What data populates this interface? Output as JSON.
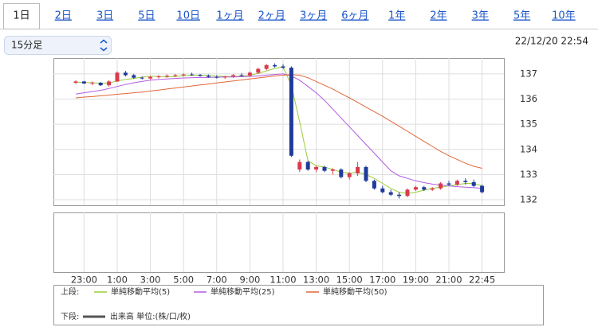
{
  "tabs": [
    "1日",
    "2日",
    "3日",
    "5日",
    "10日",
    "1ヶ月",
    "2ヶ月",
    "3ヶ月",
    "6ヶ月",
    "1年",
    "2年",
    "3年",
    "5年",
    "10年"
  ],
  "active_tab": 0,
  "interval_select": "15分足",
  "timestamp": "22/12/20 22:54",
  "chart_data": {
    "type": "candlestick",
    "categories": [
      null,
      "23:00",
      null,
      null,
      null,
      "1:00",
      null,
      null,
      null,
      "3:00",
      null,
      null,
      null,
      "5:00",
      null,
      null,
      null,
      "7:00",
      null,
      null,
      null,
      "9:00",
      null,
      null,
      null,
      "11:00",
      null,
      null,
      null,
      "13:00",
      null,
      null,
      null,
      "15:00",
      null,
      null,
      null,
      "17:00",
      null,
      null,
      null,
      "19:00",
      null,
      null,
      null,
      "21:00",
      null,
      null,
      null,
      "22:45"
    ],
    "open": [
      136.65,
      136.7,
      136.62,
      136.65,
      136.55,
      136.7,
      137.05,
      136.95,
      136.85,
      136.82,
      136.88,
      136.9,
      136.93,
      136.95,
      136.98,
      136.96,
      136.92,
      136.88,
      136.86,
      136.9,
      136.95,
      136.93,
      137.05,
      137.2,
      137.35,
      137.3,
      137.25,
      133.2,
      133.5,
      133.2,
      133.3,
      133.15,
      133.2,
      132.9,
      133.05,
      133.3,
      132.75,
      132.45,
      132.3,
      132.2,
      132.15,
      132.4,
      132.5,
      132.4,
      132.45,
      132.65,
      132.6,
      132.75,
      132.7,
      132.55
    ],
    "high": [
      136.75,
      136.72,
      136.7,
      136.68,
      136.75,
      137.1,
      137.12,
      137.0,
      136.9,
      136.92,
      136.95,
      136.98,
      137.0,
      137.02,
      137.05,
      137.0,
      136.98,
      136.95,
      136.92,
      137.0,
      137.02,
      137.1,
      137.25,
      137.4,
      137.42,
      137.38,
      137.3,
      133.6,
      133.55,
      133.35,
      133.35,
      133.25,
      133.25,
      133.1,
      133.5,
      133.35,
      132.8,
      132.55,
      132.4,
      132.3,
      132.45,
      132.55,
      132.55,
      132.5,
      132.7,
      132.75,
      132.8,
      132.85,
      132.8,
      132.6
    ],
    "low": [
      136.6,
      136.6,
      136.55,
      136.52,
      136.5,
      136.68,
      136.9,
      136.8,
      136.78,
      136.78,
      136.82,
      136.85,
      136.88,
      136.9,
      136.92,
      136.9,
      136.85,
      136.82,
      136.8,
      136.85,
      136.9,
      136.9,
      137.0,
      137.15,
      137.25,
      137.2,
      133.7,
      133.1,
      133.15,
      133.1,
      133.1,
      133.0,
      132.85,
      132.8,
      132.95,
      132.7,
      132.4,
      132.25,
      132.15,
      132.05,
      132.1,
      132.35,
      132.35,
      132.35,
      132.4,
      132.55,
      132.55,
      132.6,
      132.5,
      132.25
    ],
    "close": [
      136.7,
      136.62,
      136.65,
      136.55,
      136.7,
      137.05,
      136.95,
      136.85,
      136.82,
      136.88,
      136.9,
      136.93,
      136.95,
      136.98,
      136.96,
      136.92,
      136.88,
      136.86,
      136.9,
      136.95,
      136.93,
      137.05,
      137.2,
      137.35,
      137.3,
      137.25,
      133.75,
      133.5,
      133.2,
      133.3,
      133.15,
      133.2,
      132.9,
      133.05,
      133.3,
      132.75,
      132.45,
      132.3,
      132.2,
      132.15,
      132.4,
      132.5,
      132.4,
      132.45,
      132.65,
      132.6,
      132.75,
      132.7,
      132.55,
      132.3
    ],
    "up_color": "#d93a4c",
    "down_color": "#1f3a9c",
    "series": [
      {
        "name": "単純移動平均(5)",
        "color": "#9ccc3a",
        "values": [
          136.68,
          136.66,
          136.65,
          136.63,
          136.64,
          136.72,
          136.78,
          136.82,
          136.87,
          136.91,
          136.9,
          136.88,
          136.9,
          136.93,
          136.95,
          136.95,
          136.94,
          136.91,
          136.9,
          136.9,
          136.91,
          136.95,
          137.02,
          137.12,
          137.22,
          137.28,
          136.55,
          135.1,
          133.55,
          133.35,
          133.3,
          133.2,
          133.1,
          133.05,
          133.1,
          133.0,
          132.85,
          132.65,
          132.45,
          132.3,
          132.25,
          132.3,
          132.38,
          132.45,
          132.5,
          132.55,
          132.6,
          132.65,
          132.65,
          132.55
        ]
      },
      {
        "name": "単純移動平均(25)",
        "color": "#b35be0",
        "values": [
          136.2,
          136.25,
          136.3,
          136.35,
          136.42,
          136.5,
          136.58,
          136.65,
          136.7,
          136.75,
          136.78,
          136.8,
          136.82,
          136.84,
          136.85,
          136.86,
          136.86,
          136.87,
          136.88,
          136.88,
          136.89,
          136.9,
          136.92,
          136.95,
          136.98,
          137.0,
          136.92,
          136.75,
          136.5,
          136.25,
          135.95,
          135.6,
          135.25,
          134.9,
          134.55,
          134.2,
          133.85,
          133.5,
          133.15,
          132.95,
          132.85,
          132.75,
          132.68,
          132.62,
          132.58,
          132.55,
          132.52,
          132.5,
          132.48,
          132.45
        ]
      },
      {
        "name": "単純移動平均(50)",
        "color": "#e0673a",
        "values": [
          136.05,
          136.08,
          136.1,
          136.13,
          136.16,
          136.19,
          136.22,
          136.25,
          136.28,
          136.32,
          136.36,
          136.4,
          136.44,
          136.48,
          136.52,
          136.56,
          136.6,
          136.64,
          136.68,
          136.72,
          136.76,
          136.8,
          136.84,
          136.88,
          136.92,
          136.95,
          136.97,
          136.95,
          136.85,
          136.7,
          136.55,
          136.4,
          136.22,
          136.05,
          135.87,
          135.68,
          135.5,
          135.32,
          135.12,
          134.92,
          134.72,
          134.52,
          134.32,
          134.12,
          133.92,
          133.75,
          133.6,
          133.45,
          133.33,
          133.25
        ]
      }
    ],
    "ylim": [
      131.78,
      137.63
    ],
    "yticks": [
      132,
      133,
      134,
      135,
      136,
      137
    ],
    "grid": true,
    "legend": {
      "upper_label": "上段:",
      "lower_label": "下段:",
      "volume_label": "出来高 単位:(株/口/枚)",
      "volume_color": "#555555"
    }
  }
}
